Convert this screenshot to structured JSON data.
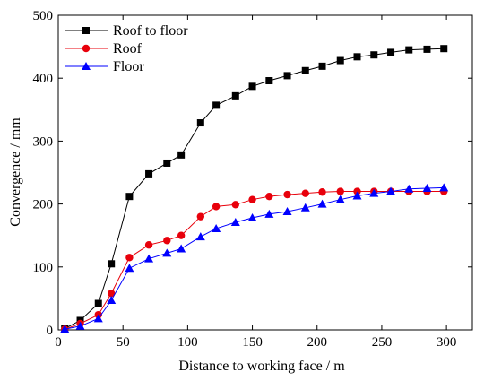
{
  "chart_data": {
    "type": "line",
    "xlabel": "Distance to working face / m",
    "ylabel": "Convergence / mm",
    "xlim": [
      0,
      320
    ],
    "ylim": [
      0,
      500
    ],
    "xticks": [
      0,
      50,
      100,
      150,
      200,
      250,
      300
    ],
    "yticks": [
      0,
      100,
      200,
      300,
      400,
      500
    ],
    "grid": false,
    "legend_position": "top-left",
    "series": [
      {
        "name": "Roof to floor",
        "color": "#000000",
        "marker": "square",
        "points": [
          [
            5,
            2
          ],
          [
            17,
            15
          ],
          [
            31,
            42
          ],
          [
            41,
            105
          ],
          [
            55,
            212
          ],
          [
            70,
            248
          ],
          [
            84,
            265
          ],
          [
            95,
            278
          ],
          [
            110,
            329
          ],
          [
            122,
            357
          ],
          [
            137,
            372
          ],
          [
            150,
            387
          ],
          [
            163,
            396
          ],
          [
            177,
            404
          ],
          [
            191,
            412
          ],
          [
            204,
            419
          ],
          [
            218,
            428
          ],
          [
            231,
            434
          ],
          [
            244,
            437
          ],
          [
            257,
            441
          ],
          [
            271,
            445
          ],
          [
            285,
            446
          ],
          [
            298,
            447
          ]
        ]
      },
      {
        "name": "Roof",
        "color": "#e8000b",
        "marker": "circle",
        "points": [
          [
            5,
            1
          ],
          [
            17,
            10
          ],
          [
            31,
            24
          ],
          [
            41,
            58
          ],
          [
            55,
            115
          ],
          [
            70,
            135
          ],
          [
            84,
            142
          ],
          [
            95,
            150
          ],
          [
            110,
            180
          ],
          [
            122,
            196
          ],
          [
            137,
            199
          ],
          [
            150,
            207
          ],
          [
            163,
            212
          ],
          [
            177,
            215
          ],
          [
            191,
            217
          ],
          [
            204,
            219
          ],
          [
            218,
            220
          ],
          [
            231,
            220
          ],
          [
            244,
            220
          ],
          [
            257,
            220
          ],
          [
            271,
            220
          ],
          [
            285,
            220
          ],
          [
            298,
            220
          ]
        ]
      },
      {
        "name": "Floor",
        "color": "#0000ff",
        "marker": "triangle",
        "points": [
          [
            5,
            1
          ],
          [
            17,
            6
          ],
          [
            31,
            18
          ],
          [
            41,
            47
          ],
          [
            55,
            98
          ],
          [
            70,
            113
          ],
          [
            84,
            122
          ],
          [
            95,
            129
          ],
          [
            110,
            148
          ],
          [
            122,
            161
          ],
          [
            137,
            171
          ],
          [
            150,
            178
          ],
          [
            163,
            184
          ],
          [
            177,
            188
          ],
          [
            191,
            194
          ],
          [
            204,
            200
          ],
          [
            218,
            207
          ],
          [
            231,
            213
          ],
          [
            244,
            217
          ],
          [
            257,
            220
          ],
          [
            271,
            224
          ],
          [
            285,
            225
          ],
          [
            298,
            226
          ]
        ]
      }
    ]
  }
}
